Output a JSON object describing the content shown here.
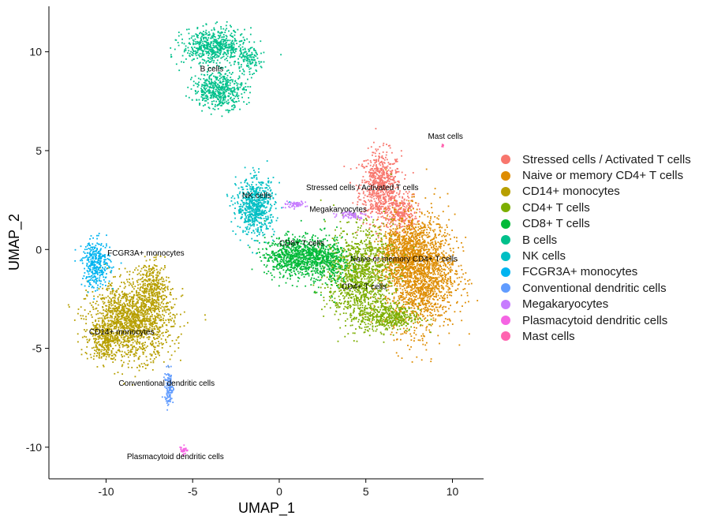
{
  "chart_data": {
    "type": "scatter",
    "title": "",
    "xlabel": "UMAP_1",
    "ylabel": "UMAP_2",
    "xlim": [
      -13.3,
      11.8
    ],
    "ylim": [
      -11.6,
      12.3
    ],
    "xticks": [
      -10,
      -5,
      0,
      5,
      10
    ],
    "yticks": [
      -10,
      -5,
      0,
      5,
      10
    ],
    "grid": false,
    "legend_position": "right",
    "clusters": [
      {
        "name": "Stressed cells / Activated T cells",
        "color": "#F8766D",
        "label": "Stressed cells / Activated T cells",
        "label_pos": [
          4.8,
          3.0
        ],
        "blobs": [
          {
            "cx": 5.8,
            "cy": 3.2,
            "rx": 1.2,
            "ry": 1.8,
            "n": 700
          },
          {
            "cx": 7.0,
            "cy": 1.9,
            "rx": 0.9,
            "ry": 0.9,
            "n": 250
          }
        ]
      },
      {
        "name": "Naive or memory CD4+ T cells",
        "color": "#DE8C00",
        "label": "Naive or memory CD4+ T cells",
        "label_pos": [
          7.2,
          -0.6
        ],
        "blobs": [
          {
            "cx": 8.1,
            "cy": -1.1,
            "rx": 2.0,
            "ry": 2.9,
            "n": 1900
          },
          {
            "cx": 6.9,
            "cy": -0.1,
            "rx": 1.4,
            "ry": 1.3,
            "n": 500
          }
        ]
      },
      {
        "name": "CD14+ monocytes",
        "color": "#B79F00",
        "label": "CD14+ monocytes",
        "label_pos": [
          -9.1,
          -4.3
        ],
        "blobs": [
          {
            "cx": -8.6,
            "cy": -3.6,
            "rx": 2.4,
            "ry": 1.9,
            "n": 1600
          },
          {
            "cx": -7.3,
            "cy": -1.8,
            "rx": 0.9,
            "ry": 1.2,
            "n": 300
          },
          {
            "cx": -10.2,
            "cy": -4.6,
            "rx": 0.8,
            "ry": 0.9,
            "n": 200
          }
        ]
      },
      {
        "name": "CD4+ T cells",
        "color": "#7CAE00",
        "label": "CD4+ T cells",
        "label_pos": [
          4.9,
          -2.0
        ],
        "blobs": [
          {
            "cx": 4.6,
            "cy": -1.3,
            "rx": 1.9,
            "ry": 2.4,
            "n": 1200
          },
          {
            "cx": 6.3,
            "cy": -3.4,
            "rx": 1.7,
            "ry": 0.7,
            "n": 400
          }
        ]
      },
      {
        "name": "CD8+ T cells",
        "color": "#00BA38",
        "label": "CD8+ T cells",
        "label_pos": [
          1.3,
          0.2
        ],
        "blobs": [
          {
            "cx": 0.9,
            "cy": -0.3,
            "rx": 1.8,
            "ry": 1.0,
            "n": 800
          },
          {
            "cx": 2.8,
            "cy": -0.6,
            "rx": 1.2,
            "ry": 1.3,
            "n": 350
          }
        ]
      },
      {
        "name": "B cells",
        "color": "#00C08B",
        "label": "B cells",
        "label_pos": [
          -3.9,
          9.0
        ],
        "blobs": [
          {
            "cx": -3.8,
            "cy": 10.3,
            "rx": 1.8,
            "ry": 0.9,
            "n": 600
          },
          {
            "cx": -3.5,
            "cy": 8.1,
            "rx": 1.5,
            "ry": 0.9,
            "n": 500
          },
          {
            "cx": -1.9,
            "cy": 9.6,
            "rx": 0.8,
            "ry": 0.6,
            "n": 120
          }
        ]
      },
      {
        "name": "NK cells",
        "color": "#00BFC4",
        "label": "NK cells",
        "label_pos": [
          -1.3,
          2.6
        ],
        "blobs": [
          {
            "cx": -1.4,
            "cy": 2.2,
            "rx": 1.1,
            "ry": 1.4,
            "n": 650
          }
        ]
      },
      {
        "name": "FCGR3A+ monocytes",
        "color": "#00B4F0",
        "label": "FCGR3A+ monocytes",
        "label_pos": [
          -7.7,
          -0.3
        ],
        "blobs": [
          {
            "cx": -10.6,
            "cy": -0.7,
            "rx": 0.8,
            "ry": 1.2,
            "n": 350
          }
        ]
      },
      {
        "name": "Conventional dendritic cells",
        "color": "#619CFF",
        "label": "Conventional dendritic cells",
        "label_pos": [
          -6.5,
          -6.9
        ],
        "blobs": [
          {
            "cx": -6.4,
            "cy": -7.0,
            "rx": 0.25,
            "ry": 0.9,
            "n": 120
          }
        ]
      },
      {
        "name": "Megakaryocytes",
        "color": "#C77CFF",
        "label": "Megakaryocytes",
        "label_pos": [
          3.4,
          1.9
        ],
        "blobs": [
          {
            "cx": 0.8,
            "cy": 2.3,
            "rx": 0.7,
            "ry": 0.15,
            "n": 60
          },
          {
            "cx": 4.2,
            "cy": 1.8,
            "rx": 0.8,
            "ry": 0.2,
            "n": 60
          }
        ]
      },
      {
        "name": "Plasmacytoid dendritic cells",
        "color": "#F564E3",
        "label": "Plasmacytoid dendritic cells",
        "label_pos": [
          -6.0,
          -10.6
        ],
        "blobs": [
          {
            "cx": -5.6,
            "cy": -10.1,
            "rx": 0.2,
            "ry": 0.3,
            "n": 30
          }
        ]
      },
      {
        "name": "Mast cells",
        "color": "#FF64B0",
        "label": "Mast cells",
        "label_pos": [
          9.6,
          5.6
        ],
        "blobs": [
          {
            "cx": 9.4,
            "cy": 5.3,
            "rx": 0.05,
            "ry": 0.08,
            "n": 5
          }
        ]
      }
    ]
  }
}
